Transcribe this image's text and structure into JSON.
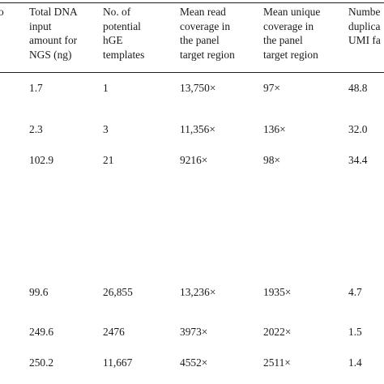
{
  "table": {
    "headers": [
      "o",
      "Total DNA\ninput\namount for\nNGS (ng)",
      "No. of\npotential\nhGE\ntemplates",
      "Mean read\ncoverage in\nthe panel\ntarget region",
      "Mean unique\ncoverage in\nthe panel\ntarget region",
      "Numbe\nduplica\nUMI fa"
    ],
    "rows": [
      {
        "dna": "1.7",
        "templates": "1",
        "read": "13,750×",
        "unique": "97×",
        "dup": "48.8"
      },
      {
        "dna": "2.3",
        "templates": "3",
        "read": "11,356×",
        "unique": "136×",
        "dup": "32.0"
      },
      {
        "dna": "102.9",
        "templates": "21",
        "read": "9216×",
        "unique": "98×",
        "dup": "34.4"
      },
      {
        "dna": "99.6",
        "templates": "26,855",
        "read": "13,236×",
        "unique": "1935×",
        "dup": "4.7"
      },
      {
        "dna": "249.6",
        "templates": "2476",
        "read": "3973×",
        "unique": "2022×",
        "dup": "1.5"
      },
      {
        "dna": "250.2",
        "templates": "11,667",
        "read": "4552×",
        "unique": "2511×",
        "dup": "1.4"
      }
    ]
  }
}
